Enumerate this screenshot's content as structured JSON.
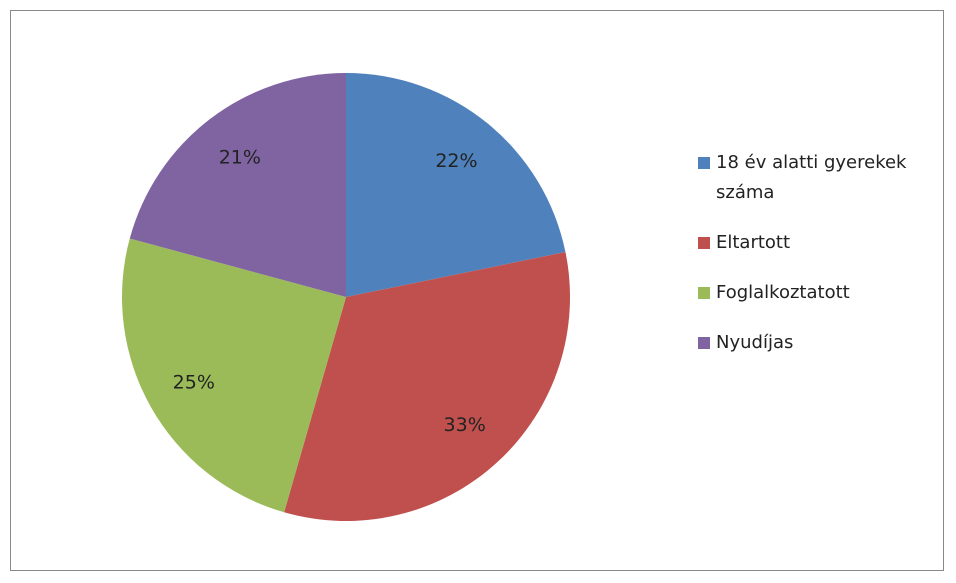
{
  "chart_data": {
    "type": "pie",
    "categories": [
      "18 év alatti gyerekek száma",
      "Eltartott",
      "Foglalkoztatott",
      "Nyudíjas"
    ],
    "values": [
      22,
      33,
      25,
      21
    ],
    "value_labels": [
      "22%",
      "33%",
      "25%",
      "21%"
    ],
    "colors": [
      "#4f81bd",
      "#c0504d",
      "#9bbb59",
      "#8064a2"
    ],
    "legend": "right"
  }
}
